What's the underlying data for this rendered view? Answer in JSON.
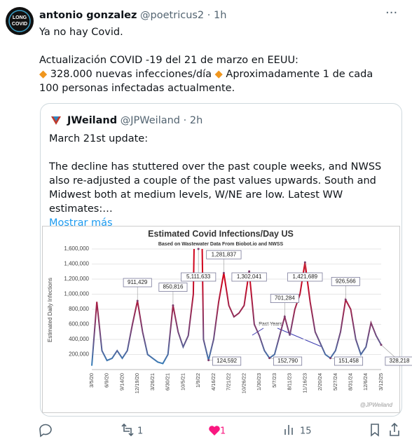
{
  "tweet": {
    "author_name": "antonio gonzalez",
    "handle": "@poetricus2",
    "separator": "·",
    "time": "1h",
    "avatar_text": [
      "LONG",
      "COVID"
    ],
    "text": [
      "Ya no hay Covid.",
      "Actualización COVID -19 del 21 de marzo en EEUU:"
    ],
    "bullet": "◆",
    "items": [
      "328.000 nuevas infecciones/día",
      "Aproximadamente 1 de cada 100 personas infectadas actualmente."
    ]
  },
  "quote": {
    "author_name": "JWeiland",
    "handle": "@JPWeiland",
    "separator": "·",
    "time": "2h",
    "text": [
      "March 21st update:",
      "The decline has stuttered over the past couple weeks, and NWSS also re-adjusted a couple of the past values upwards. South and Midwest both at medium levels, W/NE are low.  Latest WW estimates:…"
    ],
    "show_more": "Mostrar más"
  },
  "chart_data": {
    "type": "line",
    "title": "Estimated Covid Infections/Day US",
    "subtitle": "Based on Wastewater Data From Biobot.io and NWSS",
    "y_label": "Estimated Daily Infections",
    "annotation": "Past Years",
    "watermark": "@JPWeiland",
    "categories": [
      "3/5/20",
      null,
      null,
      "6/9/20",
      null,
      null,
      "9/14/20",
      null,
      null,
      "12/19/20",
      null,
      null,
      "3/26/21",
      null,
      null,
      "6/30/21",
      null,
      null,
      "10/5/21",
      null,
      null,
      "1/9/22",
      null,
      null,
      "4/16/22",
      null,
      null,
      "7/21/22",
      null,
      null,
      "10/26/22",
      null,
      null,
      "1/30/23",
      null,
      null,
      "5/7/23",
      null,
      null,
      "8/11/23",
      null,
      null,
      "11/16/23",
      null,
      null,
      "2/20/24",
      null,
      null,
      "5/27/24",
      null,
      null,
      "8/31/24",
      null,
      null,
      "12/6/24",
      null,
      null,
      "3/12/25"
    ],
    "series": [
      {
        "values": [
          50000,
          900000,
          250000,
          120000,
          150000,
          250000,
          150000,
          250000,
          600000,
          911429,
          500000,
          200000,
          150000,
          100000,
          80000,
          200000,
          850816,
          500000,
          300000,
          450000,
          1000000,
          5111633,
          400000,
          124592,
          400000,
          900000,
          1281837,
          850000,
          700000,
          750000,
          850000,
          1302041,
          600000,
          450000,
          250000,
          152790,
          200000,
          450000,
          701284,
          450000,
          800000,
          1000000,
          1421689,
          900000,
          500000,
          350000,
          200000,
          151458,
          250000,
          500000,
          926566,
          800000,
          400000,
          200000,
          300000,
          620000,
          450000,
          328218
        ],
        "value_labels": [
          null,
          null,
          null,
          null,
          null,
          null,
          null,
          null,
          null,
          "911,429",
          null,
          null,
          null,
          null,
          null,
          null,
          "850,816",
          null,
          null,
          null,
          null,
          "5,111,633",
          null,
          "124,592",
          null,
          null,
          "1,281,837",
          null,
          null,
          null,
          null,
          "1,302,041",
          null,
          null,
          null,
          "152,790",
          null,
          null,
          "701,284",
          null,
          null,
          null,
          "1,421,689",
          null,
          null,
          null,
          null,
          "151,458",
          null,
          null,
          "926,566",
          null,
          null,
          null,
          null,
          null,
          null,
          "328,218"
        ]
      }
    ],
    "color_low": "#2e86c1",
    "color_mid": "#7d3c6e",
    "color_high": "#d0021b",
    "ylim": [
      0,
      1600000
    ],
    "yticks": [
      {
        "value": 200000,
        "label": "200,000"
      },
      {
        "value": 400000,
        "label": "400,000"
      },
      {
        "value": 600000,
        "label": "600,000"
      },
      {
        "value": 800000,
        "label": "800,000"
      },
      {
        "value": 1000000,
        "label": "1,000,000"
      },
      {
        "value": 1200000,
        "label": "1,200,000"
      },
      {
        "value": 1400000,
        "label": "1,400,000"
      },
      {
        "value": 1600000,
        "label": "1,600,000"
      }
    ],
    "grid": true
  },
  "actions": {
    "retweets": 1,
    "likes": 1,
    "views": 15
  }
}
